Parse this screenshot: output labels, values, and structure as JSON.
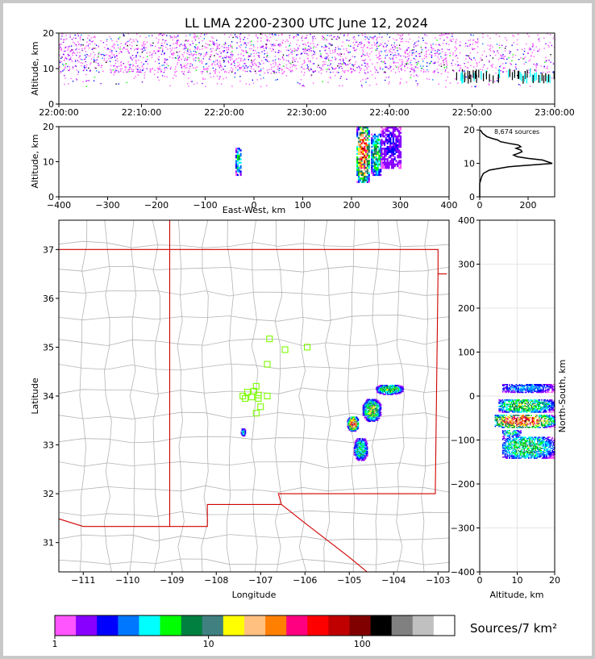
{
  "title": "LL LMA 2200-2300 UTC June 12, 2024",
  "colors": {
    "bins": [
      "#ff55ff",
      "#8800ff",
      "#0000ff",
      "#0077ff",
      "#00ffff",
      "#00ff00",
      "#008040",
      "#408080",
      "#ffff00",
      "#ffc080",
      "#ff8000",
      "#ff0080",
      "#ff0000",
      "#c00000",
      "#800000",
      "#000000",
      "#808080",
      "#c0c0c0",
      "#ffffff"
    ],
    "state_border": "#d00000",
    "county_lines": "#b4b4b4",
    "station_marker": "#7cfc00"
  },
  "chart_data": [
    {
      "id": "time_height",
      "type": "scatter",
      "xlabel": "",
      "ylabel": "Altitude, km",
      "x_ticks": [
        "22:00:00",
        "22:10:00",
        "22:20:00",
        "22:30:00",
        "22:40:00",
        "22:50:00",
        "23:00:00"
      ],
      "y_ticks": [
        0,
        10,
        20
      ],
      "ylim": [
        0,
        20
      ],
      "xlim_minutes": [
        0,
        60
      ],
      "altitude_band_km": [
        5,
        20
      ],
      "core_altitude_km": [
        9,
        17
      ]
    },
    {
      "id": "ew_altitude",
      "type": "heatmap",
      "xlabel": "East-West, km",
      "ylabel": "Altitude, km",
      "x_ticks": [
        -400,
        -300,
        -200,
        -100,
        0,
        100,
        200,
        300,
        400
      ],
      "y_ticks": [
        0,
        10,
        20
      ],
      "xlim": [
        -400,
        400
      ],
      "ylim": [
        0,
        20
      ],
      "clusters": [
        {
          "x": [
            -38,
            -28
          ],
          "alt": [
            6,
            14
          ],
          "peak": 6
        },
        {
          "x": [
            210,
            235
          ],
          "alt": [
            4,
            20
          ],
          "peak": 13
        },
        {
          "x": [
            240,
            260
          ],
          "alt": [
            6,
            18
          ],
          "peak": 7
        },
        {
          "x": [
            260,
            300
          ],
          "alt": [
            8,
            20
          ],
          "peak": 2
        }
      ]
    },
    {
      "id": "altitude_histogram",
      "type": "line",
      "annotation": "8,674 sources",
      "x_ticks": [
        0,
        200
      ],
      "y_ticks": [
        0,
        10,
        20
      ],
      "xlim": [
        0,
        310
      ],
      "ylim": [
        0,
        21
      ],
      "altitude": [
        0,
        4,
        6,
        7,
        8,
        9,
        10,
        10.5,
        11,
        11.5,
        12,
        12.5,
        13,
        13.5,
        14,
        14.5,
        15,
        15.5,
        16,
        16.5,
        17,
        17.5,
        18,
        19,
        20
      ],
      "count": [
        0,
        0,
        8,
        15,
        40,
        120,
        300,
        280,
        260,
        200,
        155,
        140,
        160,
        175,
        170,
        150,
        170,
        160,
        120,
        85,
        75,
        50,
        30,
        12,
        3
      ]
    },
    {
      "id": "plan_view",
      "type": "heatmap",
      "xlabel": "Longitude",
      "ylabel": "Latitude",
      "x_ticks": [
        -111,
        -110,
        -109,
        -108,
        -107,
        -106,
        -105,
        -104,
        -103
      ],
      "y_ticks": [
        31,
        32,
        33,
        34,
        35,
        36,
        37
      ],
      "xlim": [
        -111.55,
        -102.75
      ],
      "ylim": [
        30.4,
        37.6
      ],
      "clusters": [
        {
          "lon": [
            -104.4,
            -103.8
          ],
          "lat": [
            34.05,
            34.25
          ],
          "peak": 8
        },
        {
          "lon": [
            -104.7,
            -104.3
          ],
          "lat": [
            33.5,
            33.95
          ],
          "peak": 9
        },
        {
          "lon": [
            -105.05,
            -104.8
          ],
          "lat": [
            33.3,
            33.6
          ],
          "peak": 14
        },
        {
          "lon": [
            -104.9,
            -104.6
          ],
          "lat": [
            32.7,
            33.15
          ],
          "peak": 7
        },
        {
          "lon": [
            -107.45,
            -107.35
          ],
          "lat": [
            33.2,
            33.35
          ],
          "peak": 6
        }
      ],
      "stations": [
        [
          -106.8,
          35.17
        ],
        [
          -106.45,
          34.95
        ],
        [
          -105.95,
          35.0
        ],
        [
          -106.85,
          34.65
        ],
        [
          -107.1,
          34.2
        ],
        [
          -107.05,
          34.02
        ],
        [
          -107.3,
          34.08
        ],
        [
          -107.4,
          34.0
        ],
        [
          -107.2,
          33.98
        ],
        [
          -107.05,
          33.95
        ],
        [
          -106.85,
          34.0
        ],
        [
          -107.0,
          33.78
        ],
        [
          -107.1,
          33.65
        ],
        [
          -107.35,
          33.95
        ],
        [
          -107.15,
          34.1
        ]
      ]
    },
    {
      "id": "altitude_ns",
      "type": "heatmap",
      "xlabel": "Altitude, km",
      "ylabel": "North-South, km",
      "x_ticks": [
        0,
        10,
        20
      ],
      "y_ticks": [
        -400,
        -300,
        -200,
        -100,
        0,
        100,
        200,
        300,
        400
      ],
      "xlim": [
        0,
        20
      ],
      "ylim": [
        -400,
        400
      ],
      "clusters": [
        {
          "ns": [
            10,
            30
          ],
          "alt": [
            6,
            20
          ],
          "peak": 4
        },
        {
          "ns": [
            -35,
            -5
          ],
          "alt": [
            5,
            20
          ],
          "peak": 8
        },
        {
          "ns": [
            -70,
            -40
          ],
          "alt": [
            4,
            20
          ],
          "peak": 14
        },
        {
          "ns": [
            -90,
            -75
          ],
          "alt": [
            6,
            11
          ],
          "peak": 6
        },
        {
          "ns": [
            -140,
            -90
          ],
          "alt": [
            6,
            20
          ],
          "peak": 7
        }
      ]
    },
    {
      "id": "colorbar",
      "type": "heatmap",
      "label": "Sources/7 km²",
      "tick_labels": [
        "1",
        "10",
        "100"
      ],
      "scale": "log",
      "range": [
        1,
        400
      ]
    }
  ]
}
